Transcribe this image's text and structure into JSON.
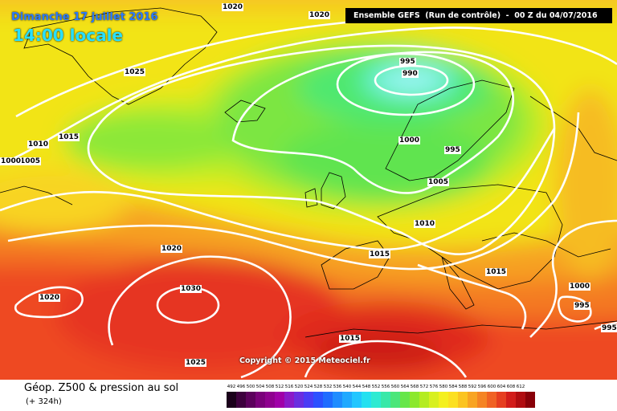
{
  "header": {
    "date": "Dimanche 17 juillet 2016",
    "time": "14:00 locale",
    "run_info": "Ensemble GEFS  (Run de contrôle)  -  00 Z du 04/07/2016"
  },
  "copyright": "Copyright © 2015 Meteociel.fr",
  "footer": {
    "title": "Géop. Z500 & pression au sol",
    "subtitle": "(+ 324h)"
  },
  "isobar_labels": [
    "1020",
    "1020",
    "1025",
    "995",
    "990",
    "1015",
    "1010",
    "1005",
    "1000",
    "1000",
    "995",
    "1005",
    "1010",
    "1015",
    "1020",
    "1030",
    "1020",
    "1015",
    "1015",
    "1000",
    "995",
    "1025",
    "995"
  ],
  "legend_scale": [
    "492",
    "496",
    "500",
    "504",
    "508",
    "512",
    "516",
    "520",
    "524",
    "528",
    "532",
    "536",
    "540",
    "544",
    "548",
    "552",
    "556",
    "560",
    "564",
    "568",
    "572",
    "576",
    "580",
    "584",
    "588",
    "592",
    "596",
    "600",
    "604",
    "608",
    "612"
  ],
  "legend_colors": [
    "#1a001a",
    "#3d003d",
    "#5c005c",
    "#7a007a",
    "#8f008f",
    "#a000a8",
    "#8a1ac8",
    "#6a2ee0",
    "#4a3cf5",
    "#2c50ff",
    "#1f6cff",
    "#1f8cff",
    "#20a9ff",
    "#22c6ff",
    "#24e0f0",
    "#2eead2",
    "#38e8a8",
    "#4ae67a",
    "#66e64a",
    "#8ce82e",
    "#b4ec22",
    "#d8f020",
    "#f4f01e",
    "#fce020",
    "#fbc420",
    "#f8a422",
    "#f58424",
    "#f06224",
    "#e63e20",
    "#d21c1a",
    "#b00c10",
    "#880008"
  ]
}
